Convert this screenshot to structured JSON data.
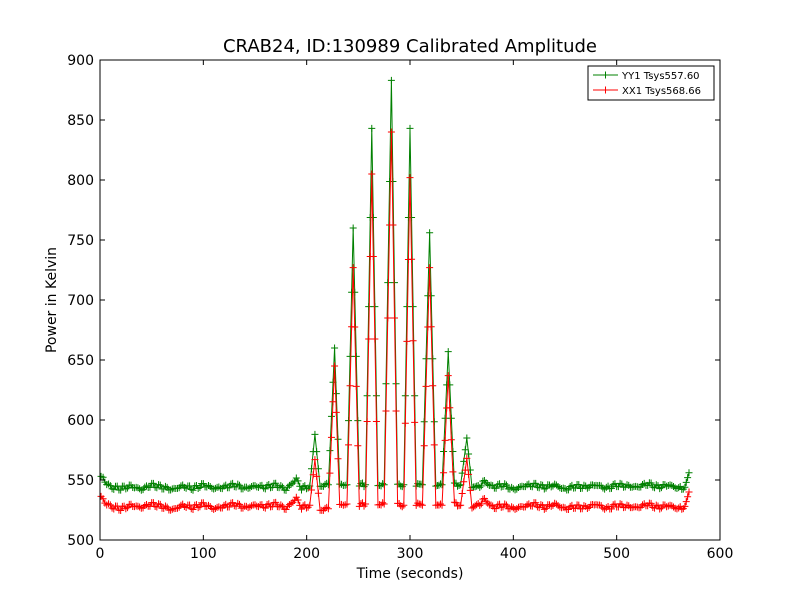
{
  "chart_data": {
    "type": "line",
    "title": "CRAB24, ID:130989 Calibrated Amplitude",
    "xlabel": "Time (seconds)",
    "ylabel": "Power in Kelvin",
    "xlim": [
      0,
      600
    ],
    "ylim": [
      500,
      900
    ],
    "xticks": [
      0,
      100,
      200,
      300,
      400,
      500,
      600
    ],
    "yticks": [
      500,
      550,
      600,
      650,
      700,
      750,
      800,
      850,
      900
    ],
    "grid": false,
    "legend_position": "top-right",
    "series": [
      {
        "name": "YY1 Tsys557.60",
        "color": "#008000",
        "marker": "+",
        "baseline": 544,
        "points": [
          [
            1,
            553
          ],
          [
            3,
            551
          ],
          [
            10,
            544
          ],
          [
            20,
            543
          ],
          [
            30,
            545
          ],
          [
            40,
            542
          ],
          [
            50,
            546
          ],
          [
            60,
            544
          ],
          [
            70,
            542
          ],
          [
            80,
            545
          ],
          [
            90,
            543
          ],
          [
            100,
            546
          ],
          [
            110,
            543
          ],
          [
            120,
            544
          ],
          [
            130,
            546
          ],
          [
            140,
            543
          ],
          [
            150,
            545
          ],
          [
            160,
            544
          ],
          [
            170,
            546
          ],
          [
            180,
            542
          ],
          [
            190,
            551
          ],
          [
            195,
            543
          ],
          [
            203,
            545
          ],
          [
            208,
            588
          ],
          [
            213,
            545
          ],
          [
            221,
            546
          ],
          [
            227,
            660
          ],
          [
            232,
            546
          ],
          [
            239,
            546
          ],
          [
            245,
            760
          ],
          [
            251,
            546
          ],
          [
            257,
            546
          ],
          [
            263,
            843
          ],
          [
            269,
            546
          ],
          [
            275,
            546
          ],
          [
            282,
            883
          ],
          [
            288,
            546
          ],
          [
            294,
            546
          ],
          [
            300,
            843
          ],
          [
            306,
            546
          ],
          [
            312,
            546
          ],
          [
            319,
            756
          ],
          [
            325,
            546
          ],
          [
            331,
            546
          ],
          [
            337,
            657
          ],
          [
            343,
            546
          ],
          [
            349,
            546
          ],
          [
            355,
            585
          ],
          [
            360,
            545
          ],
          [
            366,
            544
          ],
          [
            372,
            549
          ],
          [
            380,
            544
          ],
          [
            390,
            546
          ],
          [
            400,
            542
          ],
          [
            410,
            545
          ],
          [
            420,
            546
          ],
          [
            430,
            544
          ],
          [
            440,
            546
          ],
          [
            450,
            542
          ],
          [
            460,
            545
          ],
          [
            470,
            544
          ],
          [
            480,
            546
          ],
          [
            490,
            543
          ],
          [
            500,
            546
          ],
          [
            510,
            545
          ],
          [
            520,
            544
          ],
          [
            530,
            547
          ],
          [
            540,
            544
          ],
          [
            550,
            546
          ],
          [
            560,
            543
          ],
          [
            566,
            544
          ],
          [
            570,
            556
          ]
        ]
      },
      {
        "name": "XX1 Tsys568.66",
        "color": "#ff0000",
        "marker": "+",
        "baseline": 528,
        "points": [
          [
            1,
            535
          ],
          [
            3,
            533
          ],
          [
            10,
            528
          ],
          [
            20,
            526
          ],
          [
            30,
            529
          ],
          [
            40,
            527
          ],
          [
            50,
            530
          ],
          [
            60,
            528
          ],
          [
            70,
            525
          ],
          [
            80,
            529
          ],
          [
            90,
            527
          ],
          [
            100,
            530
          ],
          [
            110,
            526
          ],
          [
            120,
            528
          ],
          [
            130,
            530
          ],
          [
            140,
            527
          ],
          [
            150,
            529
          ],
          [
            160,
            528
          ],
          [
            170,
            530
          ],
          [
            180,
            526
          ],
          [
            190,
            535
          ],
          [
            195,
            527
          ],
          [
            203,
            529
          ],
          [
            208,
            567
          ],
          [
            213,
            525
          ],
          [
            221,
            526
          ],
          [
            227,
            645
          ],
          [
            232,
            529
          ],
          [
            239,
            530
          ],
          [
            245,
            727
          ],
          [
            251,
            529
          ],
          [
            257,
            530
          ],
          [
            263,
            805
          ],
          [
            269,
            530
          ],
          [
            275,
            530
          ],
          [
            282,
            840
          ],
          [
            288,
            530
          ],
          [
            294,
            529
          ],
          [
            300,
            802
          ],
          [
            306,
            530
          ],
          [
            312,
            529
          ],
          [
            319,
            727
          ],
          [
            325,
            530
          ],
          [
            331,
            529
          ],
          [
            337,
            637
          ],
          [
            343,
            530
          ],
          [
            349,
            529
          ],
          [
            355,
            568
          ],
          [
            360,
            528
          ],
          [
            366,
            529
          ],
          [
            372,
            534
          ],
          [
            380,
            527
          ],
          [
            390,
            529
          ],
          [
            400,
            526
          ],
          [
            410,
            528
          ],
          [
            420,
            530
          ],
          [
            430,
            527
          ],
          [
            440,
            530
          ],
          [
            450,
            526
          ],
          [
            460,
            528
          ],
          [
            470,
            527
          ],
          [
            480,
            530
          ],
          [
            490,
            526
          ],
          [
            500,
            529
          ],
          [
            510,
            528
          ],
          [
            520,
            527
          ],
          [
            530,
            530
          ],
          [
            540,
            527
          ],
          [
            550,
            529
          ],
          [
            560,
            526
          ],
          [
            566,
            528
          ],
          [
            570,
            540
          ]
        ]
      }
    ]
  }
}
